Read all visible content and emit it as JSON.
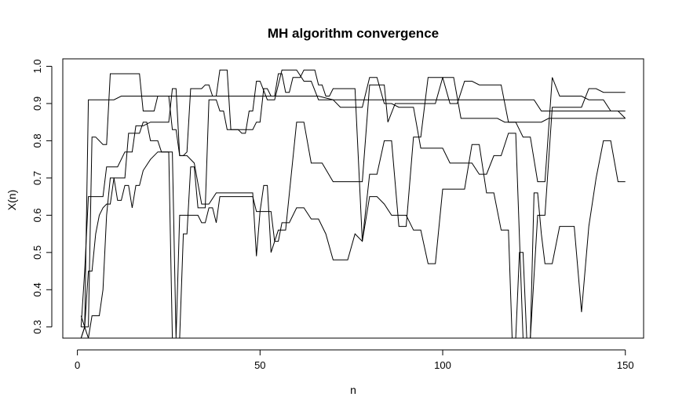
{
  "chart_data": {
    "type": "line",
    "title": "MH algorithm convergence",
    "xlabel": "n",
    "ylabel": "X(n)",
    "xlim": [
      -4,
      155
    ],
    "ylim": [
      0.27,
      1.02
    ],
    "x_ticks": [
      0,
      50,
      100,
      150
    ],
    "y_ticks": [
      0.3,
      0.4,
      0.5,
      0.6,
      0.7,
      0.8,
      0.9,
      1.0
    ],
    "y_tick_labels": [
      "0.3",
      "0.4",
      "0.5",
      "0.6",
      "0.7",
      "0.8",
      "0.9",
      "1.0"
    ],
    "grid": false,
    "legend": "none",
    "line_color": "#000000",
    "series": [
      {
        "x": [
          1,
          2,
          3,
          4,
          10,
          12,
          14,
          15,
          18,
          22,
          24,
          25,
          26,
          27,
          28,
          29,
          31,
          35,
          37,
          39,
          45,
          47,
          48,
          50,
          52,
          53,
          57,
          58,
          60,
          63,
          66,
          70,
          72,
          77,
          80,
          84,
          87,
          90,
          95,
          100,
          108,
          112,
          116,
          119,
          121,
          123,
          125,
          127,
          130,
          133,
          150
        ],
        "y": [
          0.3,
          0.3,
          0.91,
          0.91,
          0.91,
          0.92,
          0.92,
          0.92,
          0.92,
          0.92,
          0.92,
          0.92,
          0.92,
          0.92,
          0.92,
          0.92,
          0.92,
          0.92,
          0.92,
          0.92,
          0.92,
          0.92,
          0.92,
          0.92,
          0.92,
          0.92,
          0.92,
          0.92,
          0.92,
          0.92,
          0.92,
          0.91,
          0.91,
          0.91,
          0.91,
          0.91,
          0.91,
          0.91,
          0.91,
          0.91,
          0.91,
          0.91,
          0.91,
          0.91,
          0.91,
          0.91,
          0.91,
          0.88,
          0.88,
          0.88,
          0.88
        ]
      },
      {
        "x": [
          1,
          2,
          3,
          4,
          5,
          6,
          7,
          8,
          10,
          11,
          13,
          14,
          15,
          16,
          18,
          20,
          22,
          25,
          26,
          27,
          28,
          29,
          30,
          32,
          34,
          36,
          38,
          40,
          45,
          48,
          49,
          50,
          51,
          52,
          53,
          55,
          57,
          60,
          62,
          64,
          67,
          70,
          72,
          74,
          75,
          77,
          78,
          80,
          82,
          84,
          85,
          87,
          89,
          91,
          92,
          95,
          98,
          100,
          103,
          105,
          107,
          109,
          111,
          113,
          115,
          117,
          119,
          121,
          123,
          125,
          127,
          129,
          131,
          133,
          135,
          137,
          140,
          143,
          146,
          148,
          150
        ],
        "y": [
          0.3,
          0.45,
          0.65,
          0.65,
          0.65,
          0.65,
          0.65,
          0.73,
          0.73,
          0.73,
          0.77,
          0.77,
          0.77,
          0.84,
          0.84,
          0.85,
          0.85,
          0.85,
          0.94,
          0.94,
          0.76,
          0.76,
          0.76,
          0.74,
          0.63,
          0.63,
          0.66,
          0.66,
          0.66,
          0.66,
          0.49,
          0.61,
          0.68,
          0.68,
          0.5,
          0.56,
          0.56,
          0.85,
          0.85,
          0.74,
          0.74,
          0.69,
          0.69,
          0.69,
          0.69,
          0.69,
          0.69,
          0.95,
          0.95,
          0.95,
          0.85,
          0.9,
          0.9,
          0.9,
          0.9,
          0.9,
          0.9,
          0.97,
          0.97,
          0.86,
          0.86,
          0.86,
          0.86,
          0.86,
          0.86,
          0.85,
          0.85,
          0.85,
          0.85,
          0.85,
          0.85,
          0.86,
          0.86,
          0.86,
          0.86,
          0.86,
          0.86,
          0.86,
          0.86,
          0.86,
          0.86
        ]
      },
      {
        "x": [
          1,
          2,
          3,
          4,
          5,
          6,
          7,
          8,
          9,
          10,
          11,
          12,
          13,
          14,
          15,
          16,
          17,
          18,
          20,
          22,
          24,
          25,
          26,
          27,
          28,
          29,
          30,
          31,
          32,
          33,
          34,
          35,
          36,
          37,
          38,
          39,
          40,
          42,
          44,
          46,
          48,
          49,
          50,
          51,
          52,
          53,
          54,
          55,
          56,
          57,
          58,
          60,
          62,
          64,
          66,
          68,
          70,
          72,
          74,
          76,
          78,
          80,
          82,
          84,
          86,
          88,
          90,
          92,
          94,
          96,
          98,
          100,
          102,
          104,
          106,
          108,
          110,
          112,
          114,
          116,
          118,
          119,
          120,
          121,
          122,
          123,
          124,
          125,
          126,
          127,
          128,
          130,
          132,
          134,
          136,
          138,
          140,
          142,
          144,
          146,
          148,
          150
        ],
        "y": [
          0.33,
          0.3,
          0.27,
          0.33,
          0.33,
          0.33,
          0.4,
          0.6,
          0.7,
          0.7,
          0.64,
          0.64,
          0.68,
          0.68,
          0.62,
          0.68,
          0.68,
          0.72,
          0.75,
          0.77,
          0.77,
          0.77,
          0.77,
          0.27,
          0.6,
          0.6,
          0.6,
          0.6,
          0.6,
          0.6,
          0.58,
          0.58,
          0.62,
          0.62,
          0.58,
          0.65,
          0.65,
          0.65,
          0.65,
          0.65,
          0.65,
          0.61,
          0.61,
          0.61,
          0.61,
          0.61,
          0.53,
          0.53,
          0.58,
          0.58,
          0.58,
          0.62,
          0.62,
          0.59,
          0.59,
          0.55,
          0.48,
          0.48,
          0.48,
          0.55,
          0.53,
          0.65,
          0.65,
          0.63,
          0.6,
          0.6,
          0.6,
          0.56,
          0.56,
          0.47,
          0.47,
          0.67,
          0.67,
          0.67,
          0.67,
          0.79,
          0.79,
          0.66,
          0.66,
          0.56,
          0.56,
          0.27,
          0.27,
          0.5,
          0.5,
          0.27,
          0.27,
          0.66,
          0.66,
          0.55,
          0.47,
          0.47,
          0.57,
          0.57,
          0.57,
          0.34,
          0.57,
          0.7,
          0.8,
          0.8,
          0.69,
          0.69
        ]
      },
      {
        "x": [
          1,
          2,
          3,
          4,
          5,
          6,
          7,
          8,
          9,
          10,
          11,
          12,
          13,
          14,
          15,
          16,
          17,
          18,
          19,
          20,
          21,
          22,
          23,
          24,
          25,
          26,
          27,
          28,
          29,
          30,
          31,
          32,
          33,
          34,
          35,
          36,
          37,
          38,
          39,
          40,
          41,
          42,
          43,
          44,
          45,
          46,
          47,
          48,
          49,
          50,
          51,
          52,
          53,
          54,
          55,
          56,
          57,
          58,
          59,
          60,
          61,
          62,
          63,
          64,
          65,
          66,
          67,
          68,
          69,
          70,
          72,
          74,
          76,
          78,
          80,
          82,
          84,
          86,
          88,
          90,
          92,
          94,
          96,
          98,
          100,
          102,
          104,
          106,
          108,
          110,
          112,
          114,
          116,
          118,
          120,
          122,
          124,
          126,
          128,
          130,
          132,
          134,
          136,
          138,
          140,
          142,
          144,
          146,
          148,
          150
        ],
        "y": [
          0.27,
          0.3,
          0.3,
          0.81,
          0.81,
          0.8,
          0.79,
          0.79,
          0.98,
          0.98,
          0.98,
          0.98,
          0.98,
          0.98,
          0.98,
          0.98,
          0.98,
          0.88,
          0.88,
          0.88,
          0.88,
          0.92,
          0.92,
          0.92,
          0.92,
          0.83,
          0.83,
          0.76,
          0.76,
          0.77,
          0.94,
          0.94,
          0.94,
          0.94,
          0.95,
          0.95,
          0.92,
          0.92,
          0.99,
          0.99,
          0.99,
          0.83,
          0.83,
          0.83,
          0.83,
          0.83,
          0.83,
          0.83,
          0.85,
          0.85,
          0.94,
          0.94,
          0.92,
          0.92,
          0.98,
          0.98,
          0.93,
          0.93,
          0.97,
          0.97,
          0.97,
          0.99,
          0.99,
          0.99,
          0.99,
          0.95,
          0.95,
          0.92,
          0.92,
          0.94,
          0.94,
          0.94,
          0.94,
          0.53,
          0.71,
          0.71,
          0.8,
          0.8,
          0.57,
          0.57,
          0.81,
          0.81,
          0.97,
          0.97,
          0.97,
          0.9,
          0.9,
          0.96,
          0.96,
          0.95,
          0.95,
          0.95,
          0.95,
          0.85,
          0.85,
          0.81,
          0.81,
          0.69,
          0.69,
          0.97,
          0.92,
          0.92,
          0.92,
          0.92,
          0.91,
          0.91,
          0.91,
          0.88,
          0.88,
          0.86
        ]
      },
      {
        "x": [
          1,
          2,
          3,
          4,
          5,
          6,
          7,
          8,
          9,
          10,
          11,
          12,
          13,
          14,
          15,
          16,
          17,
          18,
          19,
          20,
          21,
          22,
          23,
          24,
          25,
          26,
          27,
          28,
          29,
          30,
          31,
          32,
          33,
          34,
          35,
          36,
          37,
          38,
          39,
          40,
          41,
          42,
          43,
          44,
          45,
          46,
          47,
          48,
          49,
          50,
          52,
          54,
          56,
          58,
          60,
          62,
          64,
          66,
          68,
          70,
          72,
          74,
          76,
          78,
          80,
          82,
          84,
          86,
          88,
          90,
          92,
          94,
          96,
          98,
          100,
          102,
          104,
          106,
          108,
          110,
          112,
          114,
          116,
          118,
          120,
          122,
          124,
          126,
          128,
          130,
          132,
          134,
          136,
          138,
          140,
          142,
          144,
          146,
          148,
          150
        ],
        "y": [
          0.27,
          0.3,
          0.45,
          0.45,
          0.55,
          0.6,
          0.62,
          0.63,
          0.63,
          0.7,
          0.7,
          0.7,
          0.7,
          0.82,
          0.82,
          0.82,
          0.82,
          0.85,
          0.85,
          0.8,
          0.8,
          0.8,
          0.77,
          0.77,
          0.77,
          0.27,
          0.27,
          0.27,
          0.55,
          0.55,
          0.73,
          0.73,
          0.62,
          0.62,
          0.62,
          0.91,
          0.91,
          0.91,
          0.88,
          0.88,
          0.83,
          0.83,
          0.83,
          0.83,
          0.82,
          0.82,
          0.88,
          0.88,
          0.96,
          0.96,
          0.91,
          0.91,
          0.99,
          0.99,
          0.99,
          0.96,
          0.96,
          0.91,
          0.91,
          0.91,
          0.89,
          0.89,
          0.89,
          0.89,
          0.97,
          0.97,
          0.9,
          0.9,
          0.89,
          0.89,
          0.89,
          0.78,
          0.78,
          0.78,
          0.78,
          0.74,
          0.74,
          0.74,
          0.74,
          0.71,
          0.71,
          0.76,
          0.76,
          0.82,
          0.82,
          0.27,
          0.27,
          0.6,
          0.6,
          0.89,
          0.89,
          0.89,
          0.89,
          0.89,
          0.94,
          0.94,
          0.93,
          0.93,
          0.93,
          0.93
        ]
      }
    ]
  }
}
